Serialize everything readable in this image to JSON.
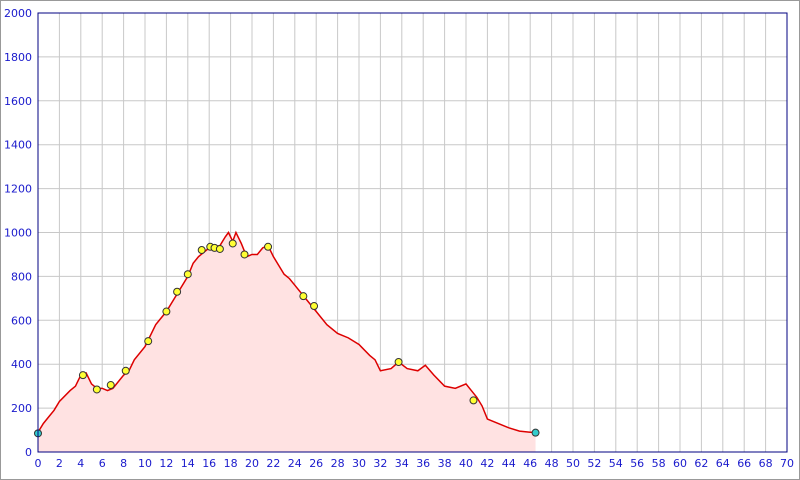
{
  "chart_data": {
    "type": "area",
    "xlim": [
      0,
      70
    ],
    "ylim": [
      0,
      2000
    ],
    "xticks": [
      0,
      2,
      4,
      6,
      8,
      10,
      12,
      14,
      16,
      18,
      20,
      22,
      24,
      26,
      28,
      30,
      32,
      34,
      36,
      38,
      40,
      42,
      44,
      46,
      48,
      50,
      52,
      54,
      56,
      58,
      60,
      62,
      64,
      66,
      68,
      70
    ],
    "yticks": [
      0,
      200,
      400,
      600,
      800,
      1000,
      1200,
      1400,
      1600,
      1800,
      2000
    ],
    "grid": true,
    "fill_color": "#ffe2e2",
    "series": [
      {
        "color": "#dd0000",
        "x": [
          0,
          0.5,
          1,
          1.5,
          2,
          3,
          3.5,
          4,
          4.5,
          5,
          5.5,
          6,
          6.5,
          7,
          7.5,
          8,
          8.5,
          9,
          10,
          11,
          12,
          13,
          14,
          14.5,
          15,
          16,
          17,
          17.5,
          17.8,
          18.2,
          18.5,
          19,
          19.5,
          20,
          20.5,
          21,
          21.5,
          22,
          23,
          23.5,
          24,
          25,
          26,
          27,
          28,
          29,
          30,
          31,
          31.5,
          32,
          33,
          33.7,
          34.5,
          35.5,
          36.2,
          37,
          38,
          39,
          40,
          40.5,
          41,
          41.5,
          42,
          43,
          44,
          45,
          46,
          46.5
        ],
        "values": [
          90,
          130,
          160,
          190,
          230,
          280,
          300,
          350,
          360,
          310,
          290,
          290,
          280,
          290,
          320,
          350,
          370,
          420,
          480,
          580,
          640,
          720,
          800,
          860,
          890,
          930,
          940,
          980,
          1000,
          960,
          1000,
          950,
          890,
          900,
          900,
          930,
          940,
          890,
          810,
          790,
          760,
          700,
          640,
          580,
          540,
          520,
          490,
          440,
          420,
          370,
          380,
          410,
          380,
          370,
          395,
          350,
          300,
          290,
          310,
          280,
          250,
          210,
          150,
          130,
          110,
          95,
          90,
          90
        ]
      },
      {
        "color": "#ffff33",
        "x": [
          4.2,
          5.5,
          6.8,
          8.2,
          10.3,
          12,
          13,
          14,
          15.3,
          16.1,
          16.5,
          17,
          18.2,
          19.3,
          21.5,
          24.8,
          25.8,
          33.7,
          40.7
        ],
        "values": [
          350,
          285,
          305,
          370,
          505,
          640,
          730,
          810,
          920,
          935,
          930,
          925,
          950,
          900,
          935,
          710,
          665,
          410,
          235
        ]
      },
      {
        "color": "#33cccc",
        "x": [
          0,
          46.5
        ],
        "values": [
          85,
          88
        ]
      }
    ]
  }
}
